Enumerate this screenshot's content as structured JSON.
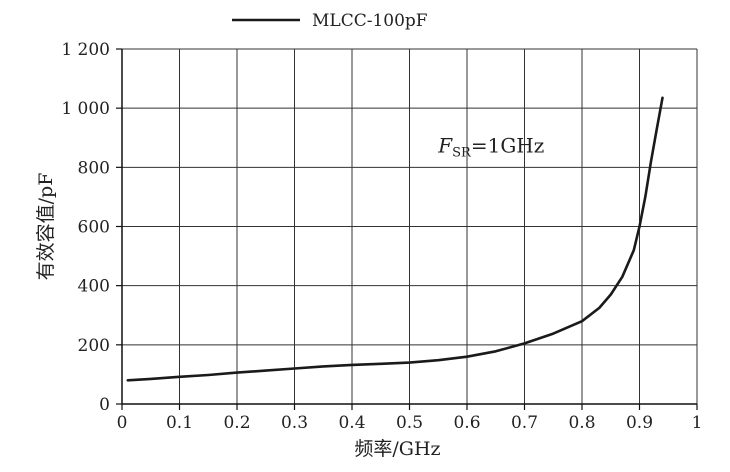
{
  "chart_data": {
    "type": "line",
    "xlabel": "频率/GHz",
    "ylabel": "有效容值/pF",
    "xlim": [
      0,
      1
    ],
    "ylim": [
      0,
      1200
    ],
    "x_ticks": [
      0,
      0.1,
      0.2,
      0.3,
      0.4,
      0.5,
      0.6,
      0.7,
      0.8,
      0.9,
      1
    ],
    "x_tick_labels": [
      "0",
      "0.1",
      "0.2",
      "0.3",
      "0.4",
      "0.5",
      "0.6",
      "0.7",
      "0.8",
      "0.9",
      "1"
    ],
    "y_ticks": [
      0,
      200,
      400,
      600,
      800,
      1000,
      1200
    ],
    "y_tick_labels": [
      "0",
      "200",
      "400",
      "600",
      "800",
      "1 000",
      "1 200"
    ],
    "grid": true,
    "legend": {
      "position": "top",
      "entries": [
        "MLCC-100pF"
      ]
    },
    "annotation": {
      "main": "F",
      "sub": "SR",
      "rest": "=1GHz",
      "x": 0.55,
      "y": 850
    },
    "series": [
      {
        "name": "MLCC-100pF",
        "color": "#1a1a1a",
        "x": [
          0.01,
          0.05,
          0.1,
          0.15,
          0.2,
          0.25,
          0.3,
          0.35,
          0.4,
          0.45,
          0.5,
          0.55,
          0.6,
          0.65,
          0.7,
          0.75,
          0.8,
          0.83,
          0.85,
          0.87,
          0.89,
          0.9,
          0.91,
          0.92,
          0.93,
          0.94
        ],
        "y": [
          80,
          85,
          92,
          98,
          106,
          113,
          120,
          127,
          132,
          136,
          140,
          148,
          160,
          178,
          205,
          238,
          280,
          325,
          370,
          430,
          520,
          600,
          700,
          820,
          930,
          1035
        ]
      }
    ]
  }
}
